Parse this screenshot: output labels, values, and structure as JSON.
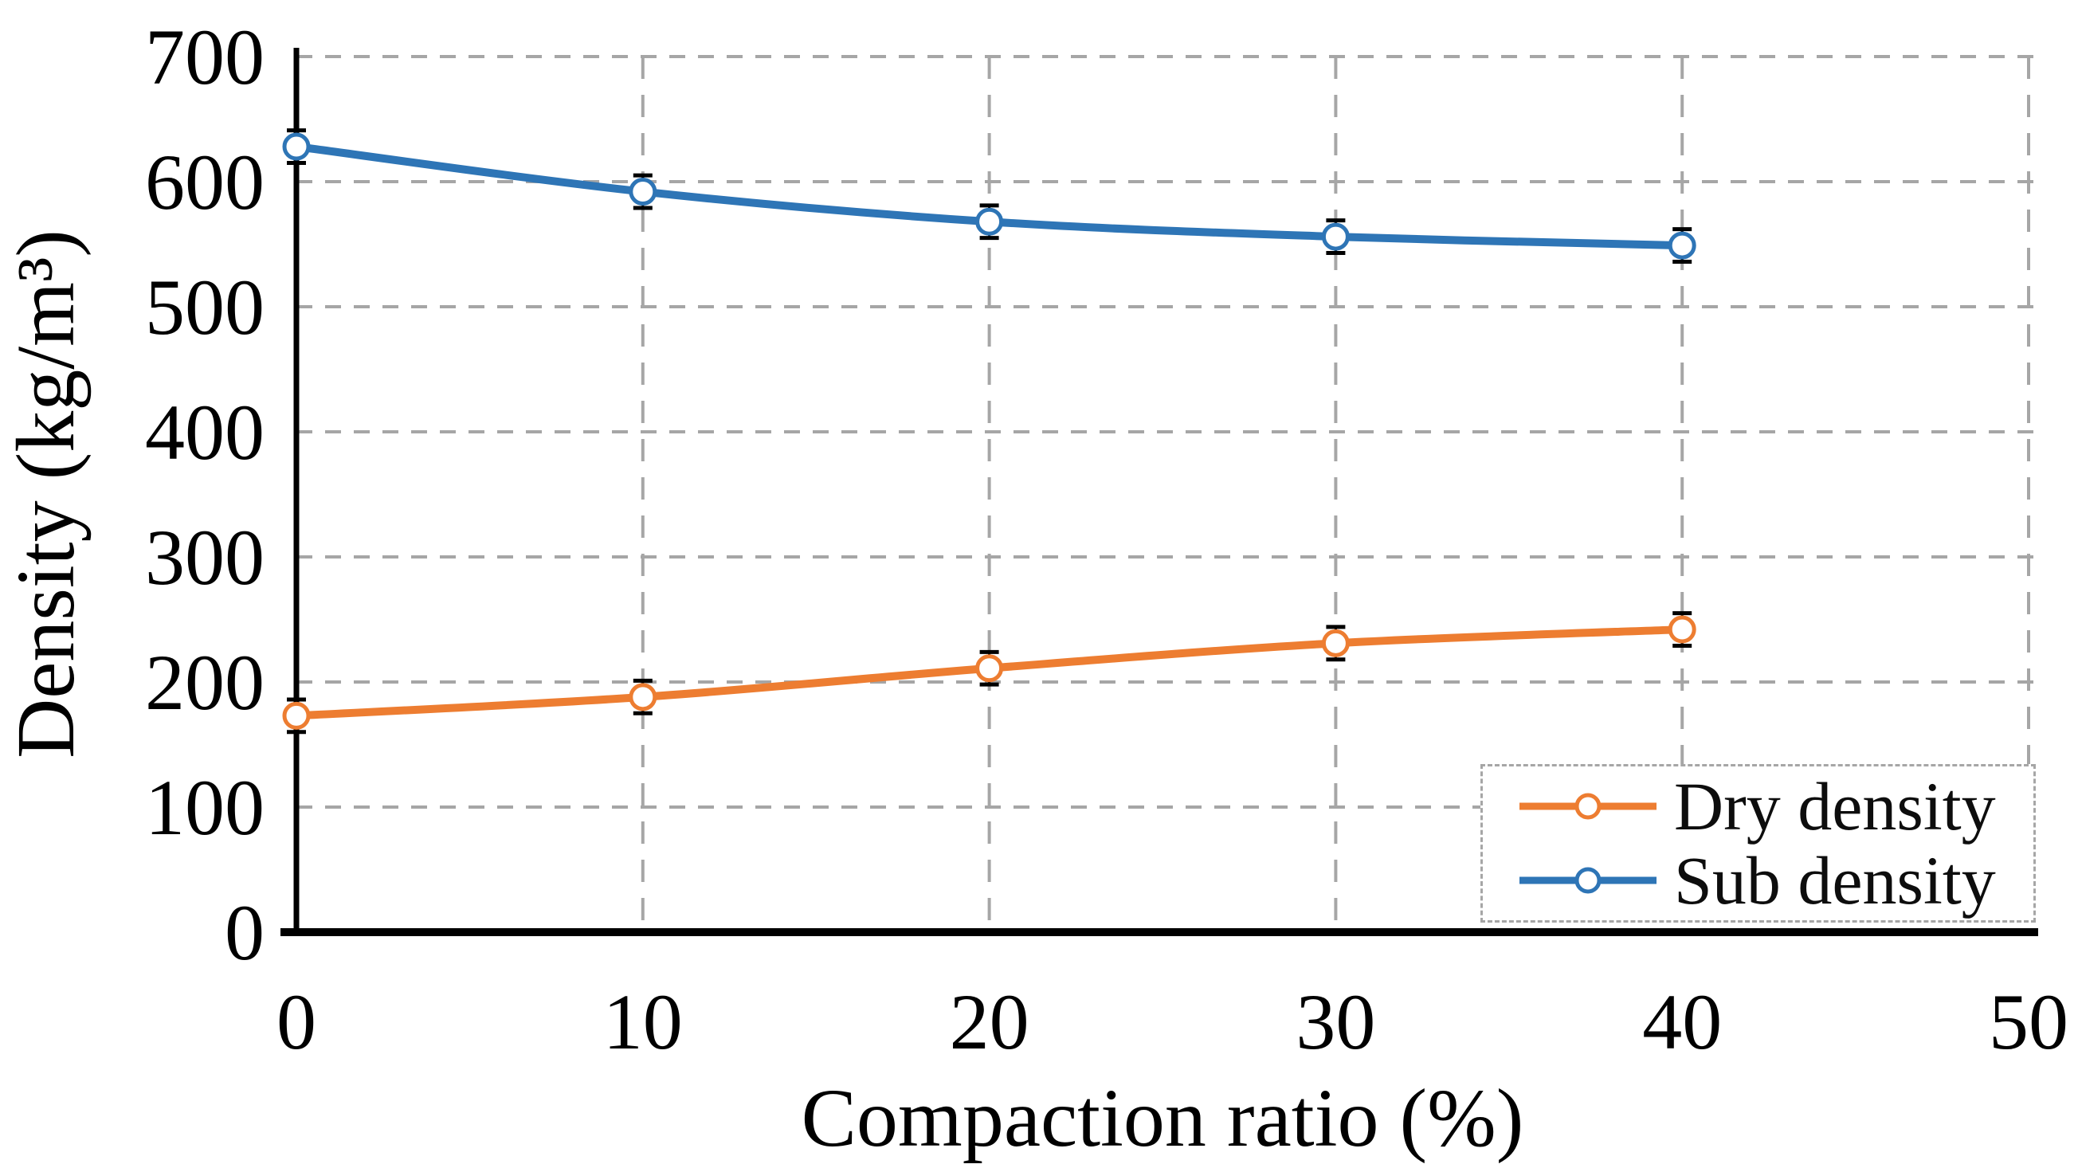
{
  "figure": {
    "background": "#ffffff",
    "grid_color": "#A6A6A6",
    "axis_color": "#000000"
  },
  "chart_data": {
    "type": "line",
    "title": "",
    "xlabel": "Compaction ratio (%)",
    "ylabel": "Density (kg/m³)",
    "x": [
      0,
      10,
      20,
      30,
      40
    ],
    "xlim": [
      0,
      50
    ],
    "ylim": [
      0,
      700
    ],
    "x_ticks": [
      0,
      10,
      20,
      30,
      40,
      50
    ],
    "y_ticks": [
      0,
      100,
      200,
      300,
      400,
      500,
      600,
      700
    ],
    "grid": "dashed",
    "marker": "open-circle",
    "error_bar_units": 13,
    "legend_position": "bottom-right",
    "series": [
      {
        "name": "Dry density",
        "color": "#ED7D31",
        "values": [
          173,
          188,
          211,
          231,
          242
        ]
      },
      {
        "name": "Sub density",
        "color": "#2E75B6",
        "values": [
          628,
          592,
          568,
          556,
          549
        ]
      }
    ]
  }
}
